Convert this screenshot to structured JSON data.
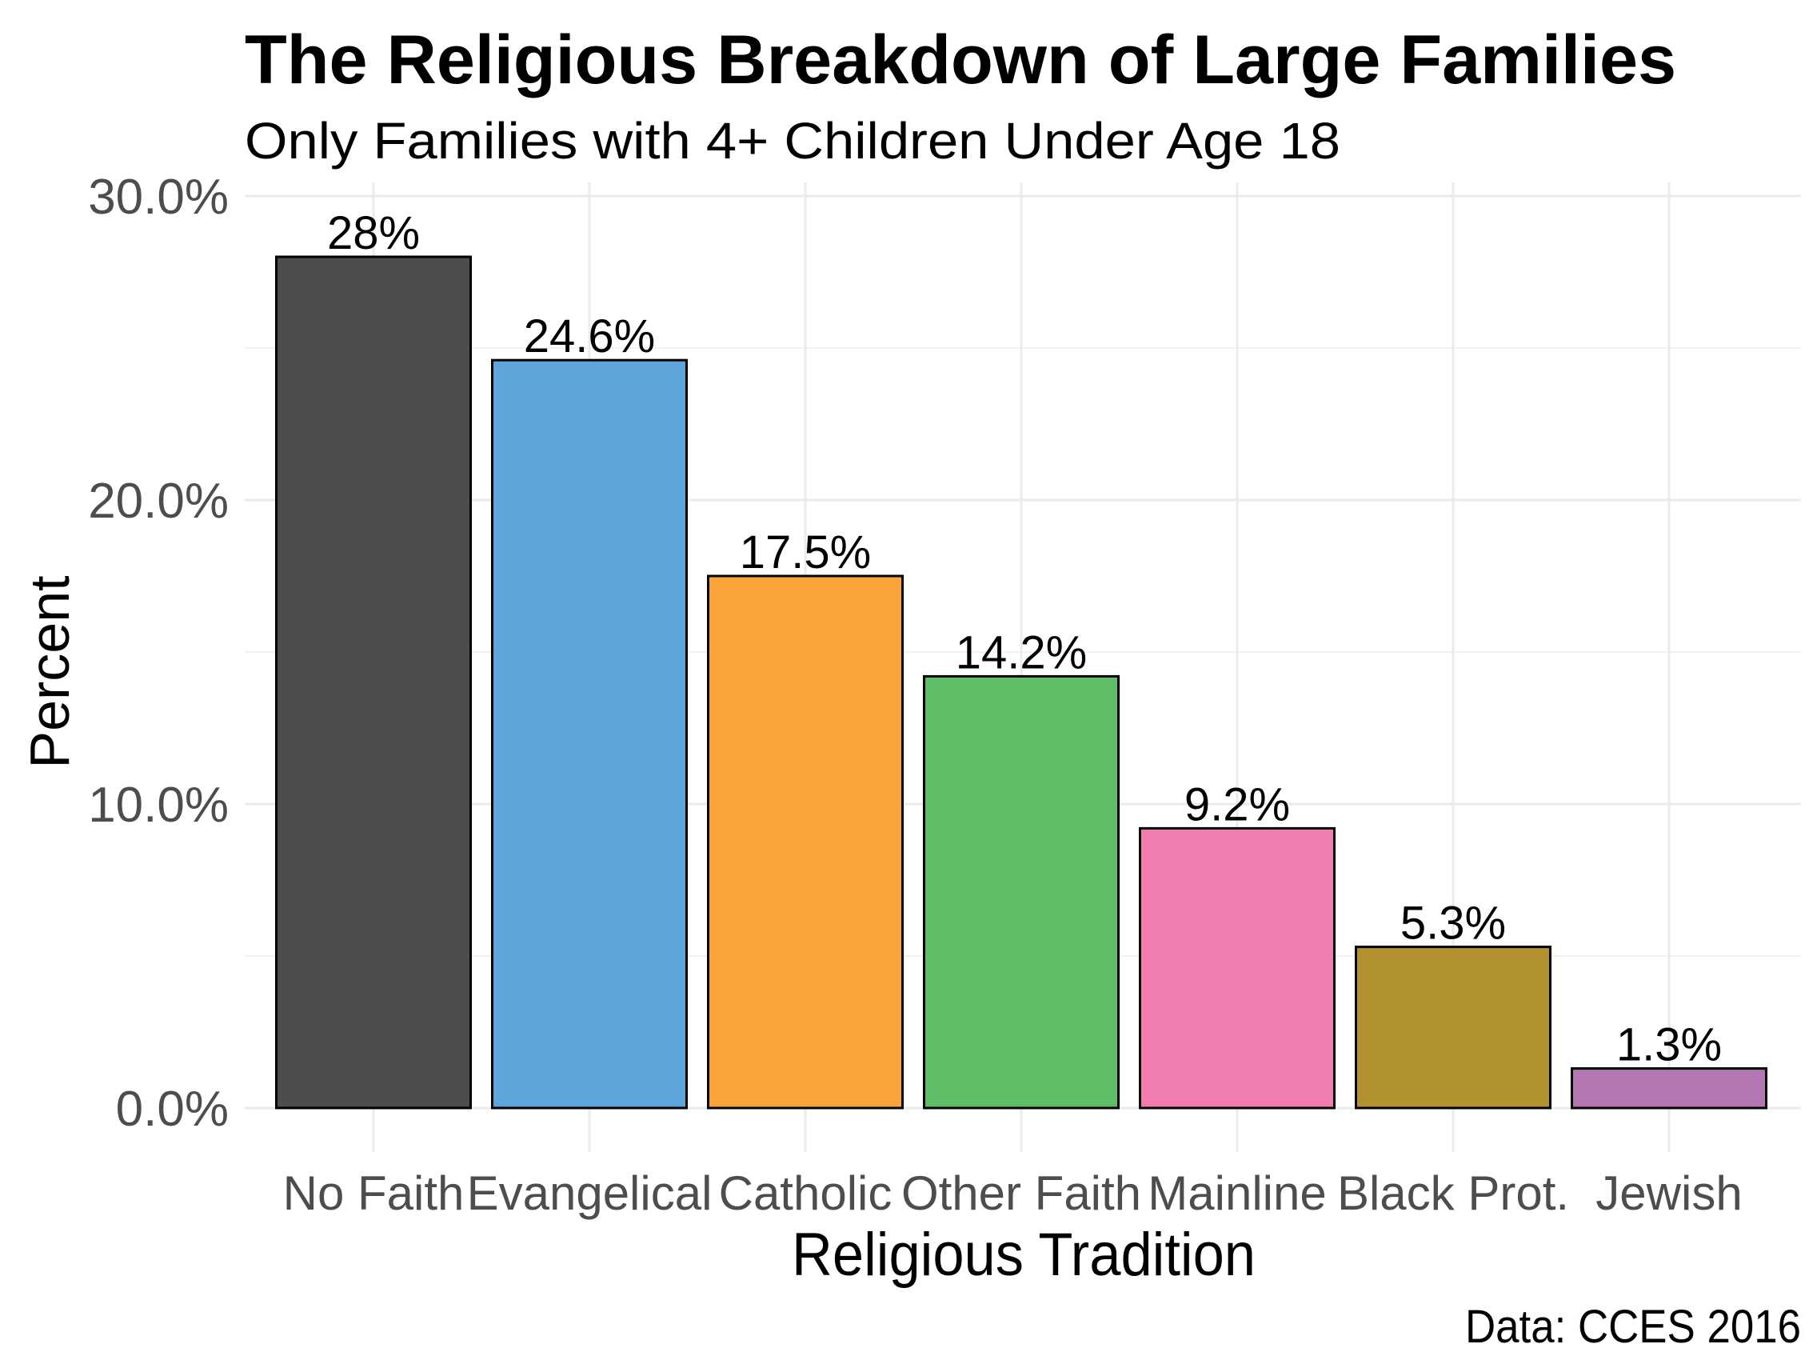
{
  "chart_data": {
    "type": "bar",
    "title": "The Religious Breakdown of Large Families",
    "subtitle": "Only Families with 4+ Children Under Age 18",
    "xlabel": "Religious Tradition",
    "ylabel": "Percent",
    "caption": "Data: CCES 2016",
    "categories": [
      "No Faith",
      "Evangelical",
      "Catholic",
      "Other Faith",
      "Mainline",
      "Black Prot.",
      "Jewish"
    ],
    "values": [
      28,
      24.6,
      17.5,
      14.2,
      9.2,
      5.3,
      1.3
    ],
    "data_labels": [
      "28%",
      "24.6%",
      "17.5%",
      "14.2%",
      "9.2%",
      "5.3%",
      "1.3%"
    ],
    "colors": [
      "#4d4d4d",
      "#5da5da",
      "#faa43a",
      "#60bd68",
      "#f17cb0",
      "#b2912f",
      "#b276b2"
    ],
    "ylim": [
      0,
      30
    ],
    "yticks": [
      0,
      10,
      20,
      30
    ],
    "ytick_labels": [
      "0.0%",
      "10.0%",
      "20.0%",
      "30.0%"
    ],
    "grid": true,
    "legend": "none"
  }
}
